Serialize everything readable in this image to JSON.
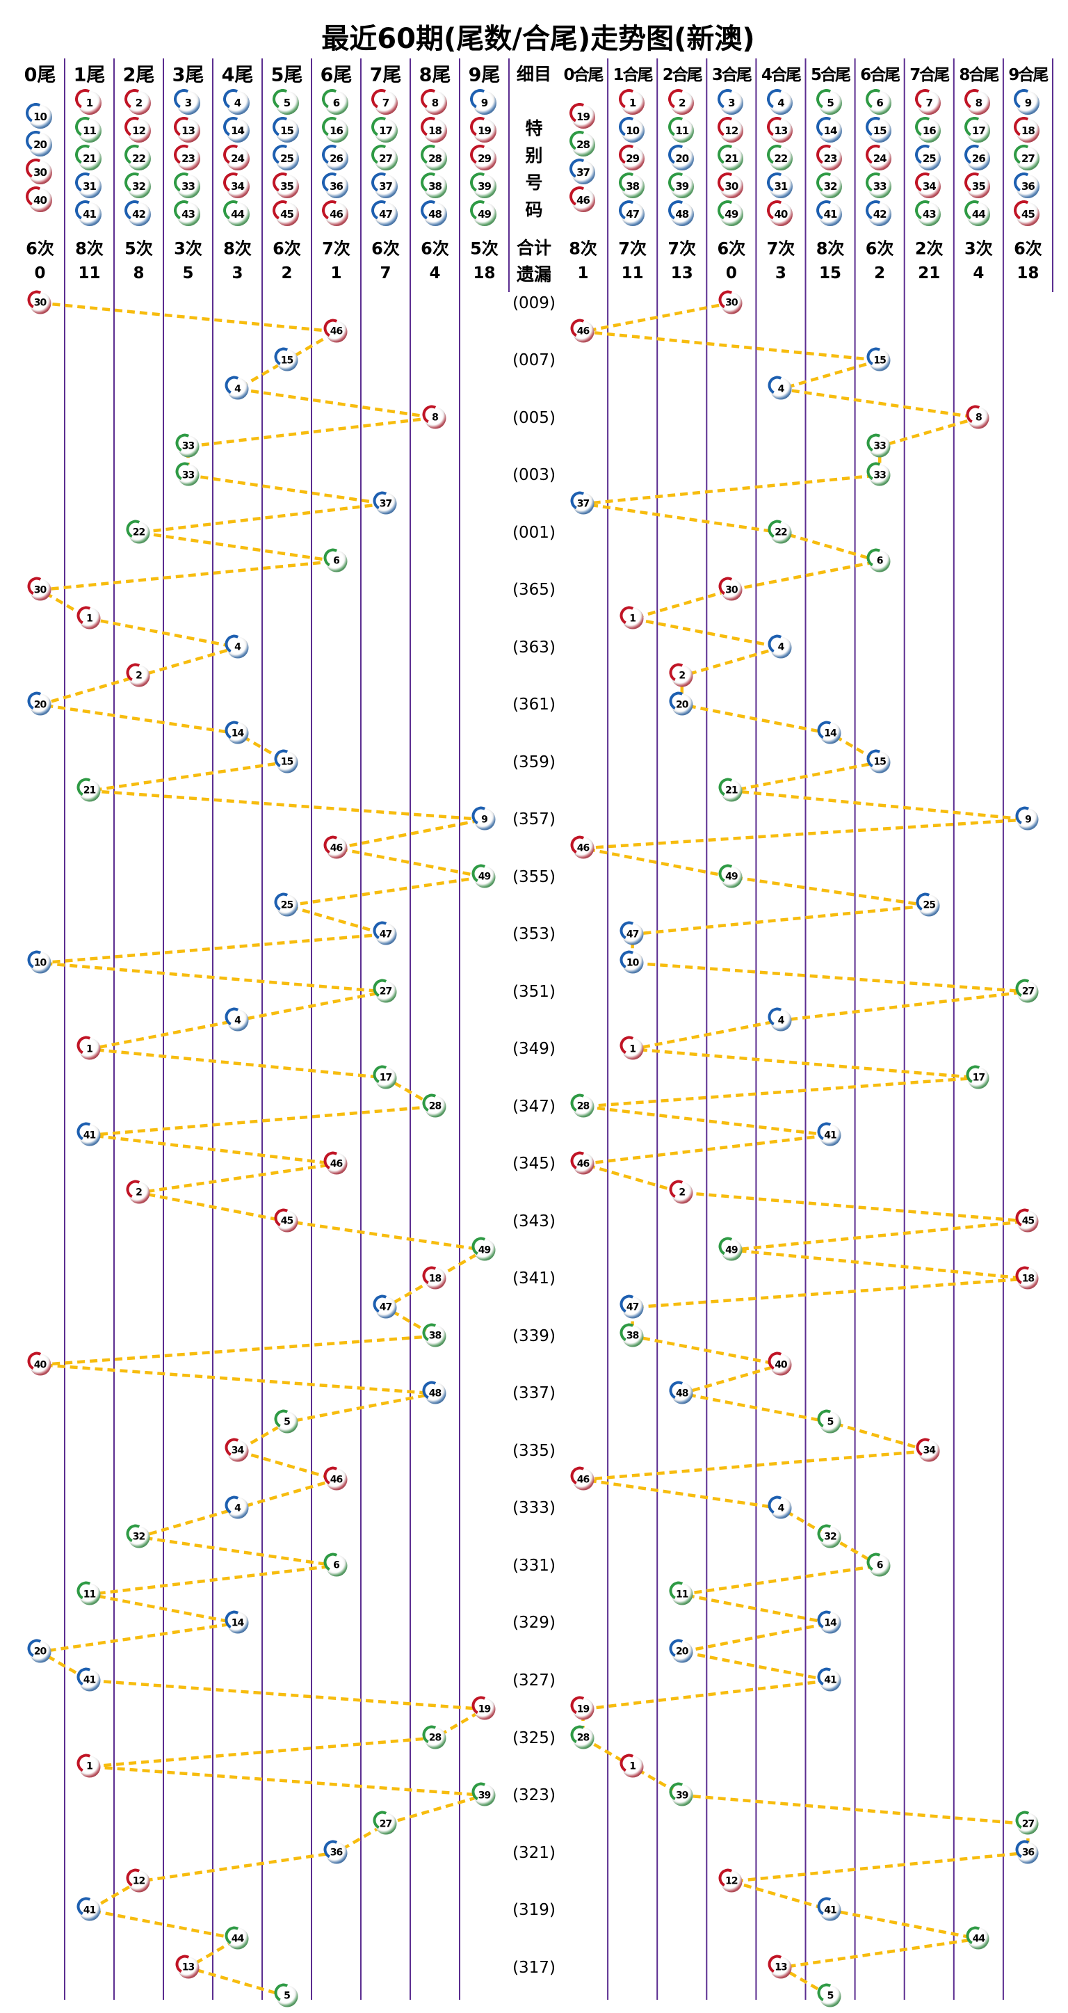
{
  "title": "最近60期(尾数/合尾)走势图(新澳)",
  "middle": {
    "header": "细目",
    "special": "特别号码",
    "total": "合计",
    "miss": "遗漏"
  },
  "left_section": {
    "headers": [
      "0尾",
      "1尾",
      "2尾",
      "3尾",
      "4尾",
      "5尾",
      "6尾",
      "7尾",
      "8尾",
      "9尾"
    ],
    "columns_balls": [
      [
        10,
        20,
        30,
        40
      ],
      [
        1,
        11,
        21,
        31,
        41
      ],
      [
        2,
        12,
        22,
        32,
        42
      ],
      [
        3,
        13,
        23,
        33,
        43
      ],
      [
        4,
        14,
        24,
        34,
        44
      ],
      [
        5,
        15,
        25,
        35,
        45
      ],
      [
        6,
        16,
        26,
        36,
        46
      ],
      [
        7,
        17,
        27,
        37,
        47
      ],
      [
        8,
        18,
        28,
        38,
        48
      ],
      [
        9,
        19,
        29,
        39,
        49
      ]
    ],
    "counts": [
      "6次",
      "8次",
      "5次",
      "3次",
      "8次",
      "6次",
      "7次",
      "6次",
      "6次",
      "5次"
    ],
    "gaps": [
      "0",
      "11",
      "8",
      "5",
      "3",
      "2",
      "1",
      "7",
      "4",
      "18"
    ]
  },
  "right_section": {
    "headers": [
      "0合尾",
      "1合尾",
      "2合尾",
      "3合尾",
      "4合尾",
      "5合尾",
      "6合尾",
      "7合尾",
      "8合尾",
      "9合尾"
    ],
    "columns_balls": [
      [
        19,
        28,
        37,
        46
      ],
      [
        1,
        10,
        29,
        38,
        47
      ],
      [
        2,
        11,
        20,
        39,
        48
      ],
      [
        3,
        12,
        21,
        30,
        49
      ],
      [
        4,
        13,
        22,
        31,
        40
      ],
      [
        5,
        14,
        23,
        32,
        41
      ],
      [
        6,
        15,
        24,
        33,
        42
      ],
      [
        7,
        16,
        25,
        34,
        43
      ],
      [
        8,
        17,
        26,
        35,
        44
      ],
      [
        9,
        18,
        27,
        36,
        45
      ]
    ],
    "counts": [
      "8次",
      "7次",
      "7次",
      "6次",
      "7次",
      "8次",
      "6次",
      "2次",
      "3次",
      "6次"
    ],
    "gaps": [
      "1",
      "11",
      "13",
      "0",
      "3",
      "15",
      "2",
      "21",
      "4",
      "18"
    ]
  },
  "chart_data": {
    "type": "scatter",
    "title": "最近60期(尾数/合尾)走势图(新澳)",
    "left_rule": "column = number mod 10 (尾数)",
    "right_rule": "column = digit-sum of number mod 10 (合尾)",
    "rows": [
      {
        "n": 30,
        "p": "(009)"
      },
      {
        "n": 46,
        "p": ""
      },
      {
        "n": 15,
        "p": "(007)"
      },
      {
        "n": 4,
        "p": ""
      },
      {
        "n": 8,
        "p": "(005)"
      },
      {
        "n": 33,
        "p": ""
      },
      {
        "n": 33,
        "p": "(003)"
      },
      {
        "n": 37,
        "p": ""
      },
      {
        "n": 22,
        "p": "(001)"
      },
      {
        "n": 6,
        "p": ""
      },
      {
        "n": 30,
        "p": "(365)"
      },
      {
        "n": 1,
        "p": ""
      },
      {
        "n": 4,
        "p": "(363)"
      },
      {
        "n": 2,
        "p": ""
      },
      {
        "n": 20,
        "p": "(361)"
      },
      {
        "n": 14,
        "p": ""
      },
      {
        "n": 15,
        "p": "(359)"
      },
      {
        "n": 21,
        "p": ""
      },
      {
        "n": 9,
        "p": "(357)"
      },
      {
        "n": 46,
        "p": ""
      },
      {
        "n": 49,
        "p": "(355)"
      },
      {
        "n": 25,
        "p": ""
      },
      {
        "n": 47,
        "p": "(353)"
      },
      {
        "n": 10,
        "p": ""
      },
      {
        "n": 27,
        "p": "(351)"
      },
      {
        "n": 4,
        "p": ""
      },
      {
        "n": 1,
        "p": "(349)"
      },
      {
        "n": 17,
        "p": ""
      },
      {
        "n": 28,
        "p": "(347)"
      },
      {
        "n": 41,
        "p": ""
      },
      {
        "n": 46,
        "p": "(345)"
      },
      {
        "n": 2,
        "p": ""
      },
      {
        "n": 45,
        "p": "(343)"
      },
      {
        "n": 49,
        "p": ""
      },
      {
        "n": 18,
        "p": "(341)"
      },
      {
        "n": 47,
        "p": ""
      },
      {
        "n": 38,
        "p": "(339)"
      },
      {
        "n": 40,
        "p": ""
      },
      {
        "n": 48,
        "p": "(337)"
      },
      {
        "n": 5,
        "p": ""
      },
      {
        "n": 34,
        "p": "(335)"
      },
      {
        "n": 46,
        "p": ""
      },
      {
        "n": 4,
        "p": "(333)"
      },
      {
        "n": 32,
        "p": ""
      },
      {
        "n": 6,
        "p": "(331)"
      },
      {
        "n": 11,
        "p": ""
      },
      {
        "n": 14,
        "p": "(329)"
      },
      {
        "n": 20,
        "p": ""
      },
      {
        "n": 41,
        "p": "(327)"
      },
      {
        "n": 19,
        "p": ""
      },
      {
        "n": 28,
        "p": "(325)"
      },
      {
        "n": 1,
        "p": ""
      },
      {
        "n": 39,
        "p": "(323)"
      },
      {
        "n": 27,
        "p": ""
      },
      {
        "n": 36,
        "p": "(321)"
      },
      {
        "n": 12,
        "p": ""
      },
      {
        "n": 41,
        "p": "(319)"
      },
      {
        "n": 44,
        "p": ""
      },
      {
        "n": 13,
        "p": "(317)"
      },
      {
        "n": 5,
        "p": ""
      }
    ]
  },
  "ball_color_groups": {
    "red": [
      1,
      2,
      7,
      8,
      12,
      13,
      18,
      19,
      23,
      24,
      29,
      30,
      34,
      35,
      40,
      45,
      46
    ],
    "blue": [
      3,
      4,
      9,
      10,
      14,
      15,
      20,
      25,
      26,
      31,
      36,
      37,
      41,
      42,
      47,
      48
    ],
    "green": [
      5,
      6,
      11,
      16,
      17,
      21,
      22,
      27,
      28,
      32,
      33,
      38,
      39,
      43,
      44,
      49
    ]
  },
  "colors": {
    "grid": "#5B2D90",
    "trend": "#F7BC0E",
    "red": "#C01425",
    "blue": "#1D5FB0",
    "green": "#2E9A44"
  }
}
